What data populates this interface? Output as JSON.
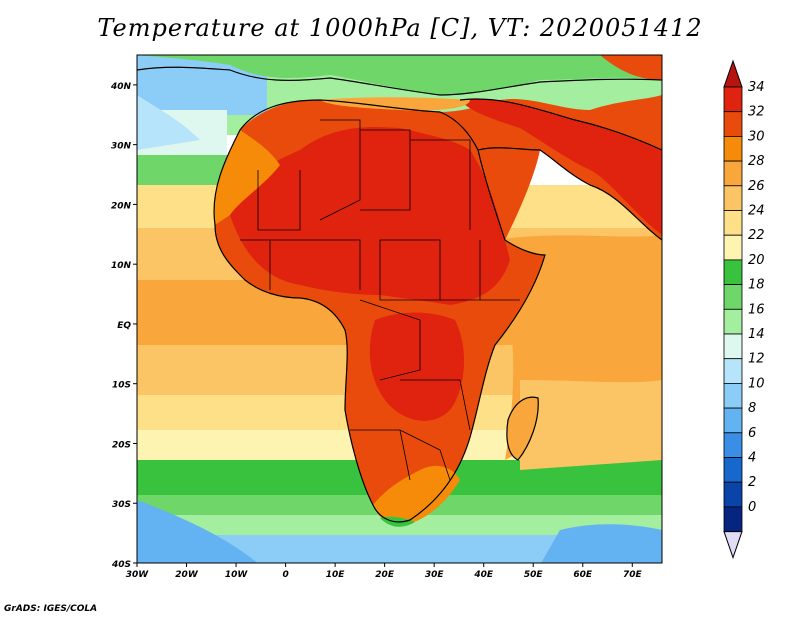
{
  "map": {
    "title": "Temperature at 1000hPa [C], VT: 2020051412",
    "credit": "GrADS: IGES/COLA",
    "lon_range": [
      -30,
      76
    ],
    "lat_range": [
      -40,
      45
    ],
    "lon_ticks": [
      "30W",
      "20W",
      "10W",
      "0",
      "10E",
      "20E",
      "30E",
      "40E",
      "50E",
      "60E",
      "70E"
    ],
    "lat_ticks": [
      "40N",
      "30N",
      "20N",
      "10N",
      "EQ",
      "10S",
      "20S",
      "30S",
      "40S"
    ]
  },
  "colorbar": {
    "labels": [
      "34",
      "32",
      "30",
      "28",
      "26",
      "24",
      "22",
      "20",
      "18",
      "16",
      "14",
      "12",
      "10",
      "8",
      "6",
      "4",
      "2",
      "0"
    ],
    "colors": [
      "#e0230f",
      "#e94b0c",
      "#f58b09",
      "#f9a73c",
      "#fbc566",
      "#fde088",
      "#fdf4b2",
      "#39c23d",
      "#6fd66a",
      "#a4eea0",
      "#dff8ef",
      "#b6e4fb",
      "#8ccdf7",
      "#63b2f1",
      "#3a8ee6",
      "#1668cd",
      "#0a44a8",
      "#062580"
    ],
    "tip_top": "#b5140f",
    "tip_bottom": "#e2dcf4"
  }
}
